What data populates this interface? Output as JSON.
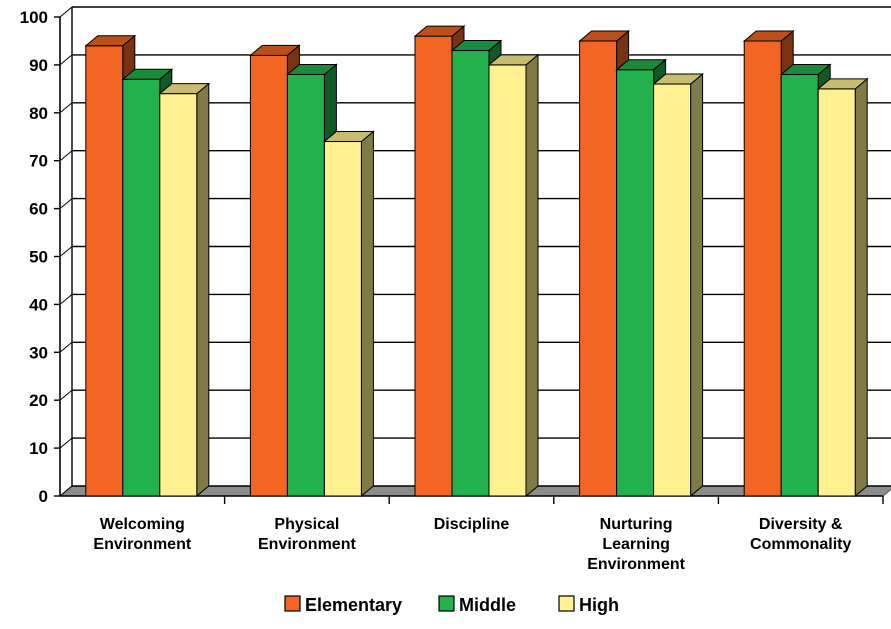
{
  "chart_data": {
    "type": "bar",
    "categories": [
      [
        "Welcoming",
        "Environment"
      ],
      [
        "Physical",
        "Environment"
      ],
      [
        "Discipline"
      ],
      [
        "Nurturing",
        "Learning",
        "Environment"
      ],
      [
        "Diversity &",
        "Commonality"
      ]
    ],
    "series": [
      {
        "name": "Elementary",
        "values": [
          94,
          92,
          96,
          95,
          95
        ],
        "color": "#f26522"
      },
      {
        "name": "Middle",
        "values": [
          87,
          88,
          93,
          89,
          88
        ],
        "color": "#22b14c"
      },
      {
        "name": "High",
        "values": [
          84,
          74,
          90,
          86,
          85
        ],
        "color": "#fff18f"
      }
    ],
    "ylim": [
      0,
      100
    ],
    "yticks": [
      0,
      10,
      20,
      30,
      40,
      50,
      60,
      70,
      80,
      90,
      100
    ],
    "grid": true,
    "three_d": true,
    "legend_position": "bottom",
    "title": "",
    "xlabel": "",
    "ylabel": ""
  }
}
